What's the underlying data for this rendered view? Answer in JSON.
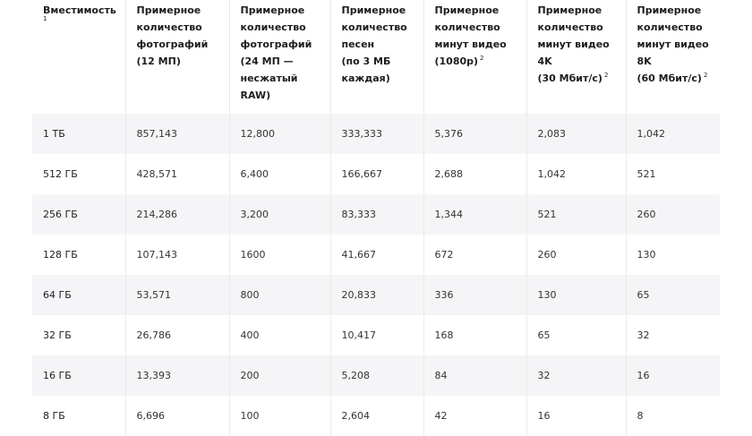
{
  "table": {
    "headers": [
      {
        "lines": [
          "Вместимость"
        ],
        "footnote": "1",
        "footnote_style": "below"
      },
      {
        "lines": [
          "Примерное",
          "количество",
          "фотографий",
          "(12 МП)"
        ],
        "footnote": ""
      },
      {
        "lines": [
          "Примерное",
          "количество",
          "фотографий",
          "(24 МП —",
          "несжатый",
          "RAW)"
        ],
        "footnote": ""
      },
      {
        "lines": [
          "Примерное",
          "количество",
          "песен",
          "(по 3 МБ",
          "каждая)"
        ],
        "footnote": ""
      },
      {
        "lines": [
          "Примерное",
          "количество",
          "минут видео",
          "(1080p)"
        ],
        "footnote": "2",
        "footnote_style": "sup"
      },
      {
        "lines": [
          "Примерное",
          "количество",
          "минут видео",
          "4K",
          "(30 Мбит/с)"
        ],
        "footnote": "2",
        "footnote_style": "sup"
      },
      {
        "lines": [
          "Примерное",
          "количество",
          "минут видео",
          "8K",
          "(60 Мбит/с)"
        ],
        "footnote": "2",
        "footnote_style": "sup"
      }
    ],
    "rows": [
      [
        "1 ТБ",
        "857,143",
        "12,800",
        "333,333",
        "5,376",
        "2,083",
        "1,042"
      ],
      [
        "512 ГБ",
        "428,571",
        "6,400",
        "166,667",
        "2,688",
        "1,042",
        "521"
      ],
      [
        "256 ГБ",
        "214,286",
        "3,200",
        "83,333",
        "1,344",
        "521",
        "260"
      ],
      [
        "128 ГБ",
        "107,143",
        "1600",
        "41,667",
        "672",
        "260",
        "130"
      ],
      [
        "64 ГБ",
        "53,571",
        "800",
        "20,833",
        "336",
        "130",
        "65"
      ],
      [
        "32 ГБ",
        "26,786",
        "400",
        "10,417",
        "168",
        "65",
        "32"
      ],
      [
        "16 ГБ",
        "13,393",
        "200",
        "5,208",
        "84",
        "32",
        "16"
      ],
      [
        "8 ГБ",
        "6,696",
        "100",
        "2,604",
        "42",
        "16",
        "8"
      ]
    ]
  },
  "colors": {
    "stripe": "#f5f5f7",
    "text": "#1d1d1f",
    "divider": "#e6e6e6"
  }
}
